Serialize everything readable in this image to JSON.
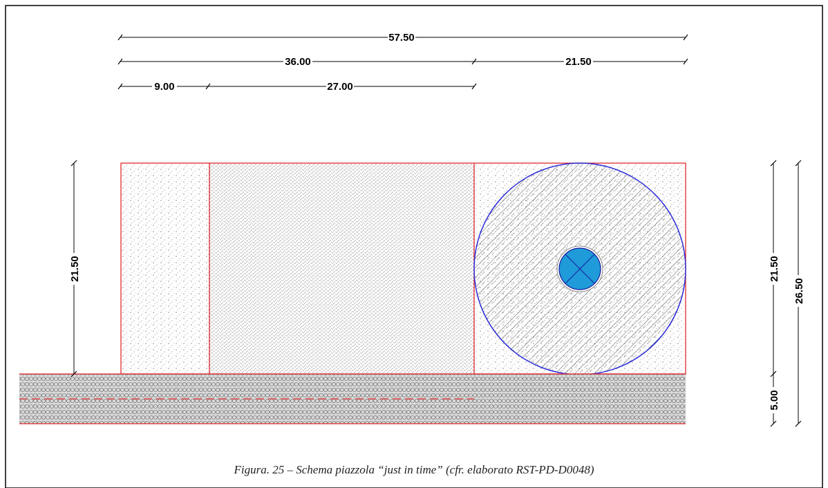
{
  "drawing": {
    "dimensions": {
      "top_total": "57.50",
      "top_left": "36.00",
      "top_right": "21.50",
      "small_left": "9.00",
      "small_right": "27.00",
      "left_height": "21.50",
      "right_upper": "21.50",
      "right_lower": "5.00",
      "right_total": "26.50"
    },
    "colors": {
      "outline_red": "#e0262b",
      "circle_blue": "#2b2bd9",
      "foundation_blue": "#1e9bd8",
      "hatch": "#555555"
    }
  },
  "caption": "Figura. 25 – Schema piazzola “just in time” (cfr. elaborato RST-PD-D0048)"
}
